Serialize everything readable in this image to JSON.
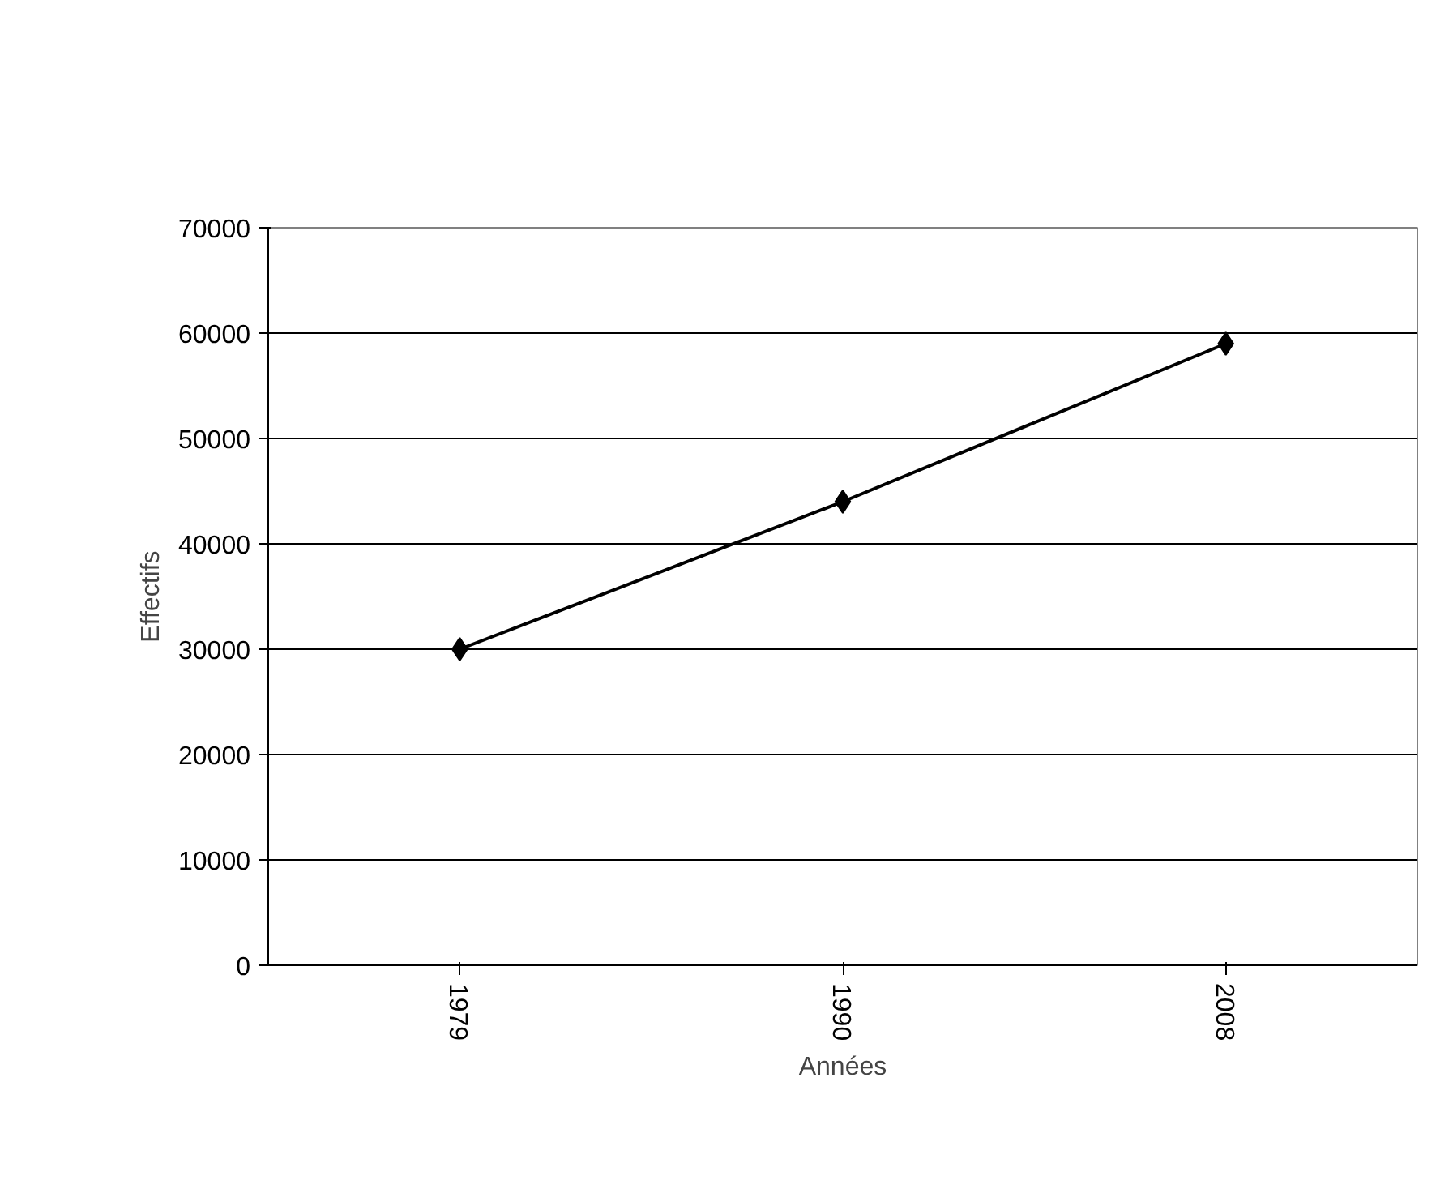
{
  "chart_data": {
    "type": "line",
    "xlabel": "Années",
    "ylabel": "Effectifs",
    "categories": [
      "1979",
      "1990",
      "2008"
    ],
    "series": [
      {
        "color": "#000000",
        "values": [
          30000,
          44000,
          59000
        ]
      }
    ],
    "ylim": [
      0,
      70000
    ],
    "yticks": [
      0,
      10000,
      20000,
      30000,
      40000,
      50000,
      60000,
      70000
    ],
    "grid": "y",
    "marker": "diamond",
    "line_style": "solid"
  }
}
